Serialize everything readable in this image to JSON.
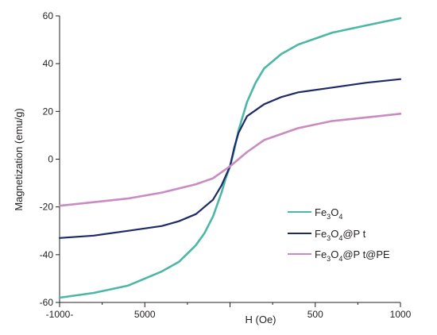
{
  "chart_data": {
    "type": "line",
    "title": "",
    "xlabel": "H (Oe)",
    "ylabel": "Magnetization (emu/g)",
    "xlim": [
      -10000,
      10000
    ],
    "ylim": [
      -60,
      60
    ],
    "x_tick_labels": [
      "-1000-",
      "5000",
      "",
      "500",
      "1000"
    ],
    "y_ticks": [
      60,
      40,
      20,
      0,
      -20,
      -40,
      -60
    ],
    "grid": false,
    "legend_position": "bottom-right",
    "series": [
      {
        "name": "Fe3O4",
        "name_parts": {
          "a": "Fe",
          "b": "3",
          "c": "O",
          "d": "4",
          "e": ""
        },
        "color": "#4db7a6",
        "x": [
          -10000,
          -8000,
          -6000,
          -4000,
          -3000,
          -2000,
          -1500,
          -1000,
          -500,
          -250,
          0,
          250,
          500,
          1000,
          1500,
          2000,
          3000,
          4000,
          6000,
          8000,
          10000
        ],
        "y": [
          -58,
          -56,
          -53,
          -47,
          -43,
          -36,
          -31,
          -24,
          -14,
          -8,
          -3,
          4,
          12,
          24,
          32,
          38,
          44,
          48,
          53,
          56,
          59
        ]
      },
      {
        "name": "Fe3O4@P t",
        "name_parts": {
          "a": "Fe",
          "b": "3",
          "c": "O",
          "d": "4",
          "e": "@P t"
        },
        "color": "#1e2a66",
        "x": [
          -10000,
          -8000,
          -6000,
          -4000,
          -3000,
          -2000,
          -1000,
          -500,
          -250,
          0,
          250,
          500,
          1000,
          2000,
          3000,
          4000,
          6000,
          8000,
          10000
        ],
        "y": [
          -33,
          -32,
          -30,
          -28,
          -26,
          -23,
          -17,
          -11,
          -7,
          -3,
          5,
          11,
          18,
          23,
          26,
          28,
          30,
          32,
          33.5
        ]
      },
      {
        "name": "Fe3O4@P t@PE",
        "name_parts": {
          "a": "Fe",
          "b": "3",
          "c": "O",
          "d": "4",
          "e": "@P t@PE"
        },
        "color": "#c98bc2",
        "x": [
          -10000,
          -8000,
          -6000,
          -4000,
          -2000,
          -1000,
          0,
          1000,
          2000,
          4000,
          6000,
          8000,
          10000
        ],
        "y": [
          -19.5,
          -18,
          -16.5,
          -14,
          -10.5,
          -8,
          -3,
          3,
          8,
          13,
          16,
          17.5,
          19
        ]
      }
    ]
  }
}
